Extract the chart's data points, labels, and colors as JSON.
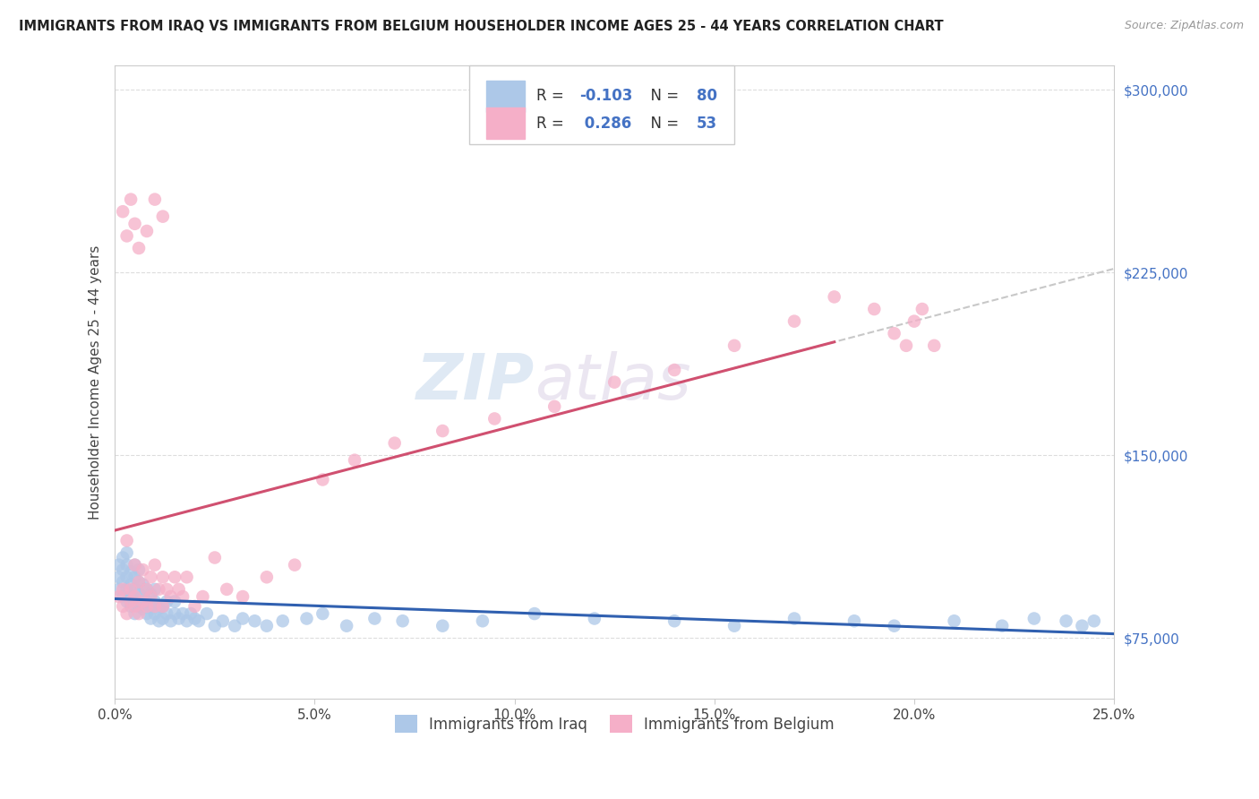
{
  "title": "IMMIGRANTS FROM IRAQ VS IMMIGRANTS FROM BELGIUM HOUSEHOLDER INCOME AGES 25 - 44 YEARS CORRELATION CHART",
  "source": "Source: ZipAtlas.com",
  "ylabel": "Householder Income Ages 25 - 44 years",
  "xmin": 0.0,
  "xmax": 0.25,
  "ymin": 50000,
  "ymax": 310000,
  "yticks": [
    75000,
    150000,
    225000,
    300000
  ],
  "ytick_labels": [
    "$75,000",
    "$150,000",
    "$225,000",
    "$300,000"
  ],
  "xtick_vals": [
    0.0,
    0.05,
    0.1,
    0.15,
    0.2,
    0.25
  ],
  "xtick_labels": [
    "0.0%",
    "5.0%",
    "10.0%",
    "15.0%",
    "20.0%",
    "25.0%"
  ],
  "legend_iraq_r": "-0.103",
  "legend_iraq_n": "80",
  "legend_belgium_r": "0.286",
  "legend_belgium_n": "53",
  "iraq_color": "#adc8e8",
  "belgium_color": "#f5afc8",
  "iraq_line_color": "#3060b0",
  "belgium_line_color": "#d05070",
  "dashed_line_color": "#c8c8c8",
  "watermark_zip": "ZIP",
  "watermark_atlas": "atlas",
  "iraq_x": [
    0.001,
    0.001,
    0.001,
    0.002,
    0.002,
    0.002,
    0.002,
    0.003,
    0.003,
    0.003,
    0.003,
    0.003,
    0.004,
    0.004,
    0.004,
    0.004,
    0.005,
    0.005,
    0.005,
    0.005,
    0.005,
    0.006,
    0.006,
    0.006,
    0.006,
    0.007,
    0.007,
    0.007,
    0.008,
    0.008,
    0.008,
    0.009,
    0.009,
    0.009,
    0.01,
    0.01,
    0.01,
    0.011,
    0.011,
    0.012,
    0.012,
    0.013,
    0.013,
    0.014,
    0.015,
    0.015,
    0.016,
    0.017,
    0.018,
    0.019,
    0.02,
    0.021,
    0.023,
    0.025,
    0.027,
    0.03,
    0.032,
    0.035,
    0.038,
    0.042,
    0.048,
    0.052,
    0.058,
    0.065,
    0.072,
    0.082,
    0.092,
    0.105,
    0.12,
    0.14,
    0.155,
    0.17,
    0.185,
    0.195,
    0.21,
    0.222,
    0.23,
    0.238,
    0.242,
    0.245
  ],
  "iraq_y": [
    95000,
    100000,
    105000,
    92000,
    98000,
    103000,
    108000,
    90000,
    95000,
    100000,
    105000,
    110000,
    88000,
    92000,
    97000,
    102000,
    85000,
    90000,
    95000,
    100000,
    105000,
    88000,
    93000,
    98000,
    103000,
    87000,
    92000,
    97000,
    85000,
    90000,
    95000,
    83000,
    88000,
    93000,
    85000,
    90000,
    95000,
    82000,
    87000,
    83000,
    88000,
    85000,
    90000,
    82000,
    85000,
    90000,
    83000,
    85000,
    82000,
    85000,
    83000,
    82000,
    85000,
    80000,
    82000,
    80000,
    83000,
    82000,
    80000,
    82000,
    83000,
    85000,
    80000,
    83000,
    82000,
    80000,
    82000,
    85000,
    83000,
    82000,
    80000,
    83000,
    82000,
    80000,
    82000,
    80000,
    83000,
    82000,
    80000,
    82000
  ],
  "belgium_x": [
    0.001,
    0.002,
    0.002,
    0.003,
    0.003,
    0.004,
    0.004,
    0.005,
    0.005,
    0.005,
    0.006,
    0.006,
    0.007,
    0.007,
    0.008,
    0.008,
    0.009,
    0.009,
    0.01,
    0.01,
    0.011,
    0.012,
    0.012,
    0.013,
    0.014,
    0.015,
    0.016,
    0.017,
    0.018,
    0.02,
    0.022,
    0.025,
    0.028,
    0.032,
    0.038,
    0.045,
    0.052,
    0.06,
    0.07,
    0.082,
    0.095,
    0.11,
    0.125,
    0.14,
    0.155,
    0.17,
    0.18,
    0.19,
    0.195,
    0.198,
    0.2,
    0.202,
    0.205
  ],
  "belgium_y": [
    92000,
    88000,
    95000,
    85000,
    115000,
    90000,
    95000,
    105000,
    88000,
    92000,
    98000,
    85000,
    103000,
    90000,
    95000,
    88000,
    100000,
    92000,
    105000,
    88000,
    95000,
    100000,
    88000,
    95000,
    92000,
    100000,
    95000,
    92000,
    100000,
    88000,
    92000,
    108000,
    95000,
    92000,
    100000,
    105000,
    140000,
    148000,
    155000,
    160000,
    165000,
    170000,
    180000,
    185000,
    195000,
    205000,
    215000,
    210000,
    200000,
    195000,
    205000,
    210000,
    195000
  ],
  "belgium_outliers_x": [
    0.002,
    0.003,
    0.004,
    0.005,
    0.006,
    0.008,
    0.01,
    0.012
  ],
  "belgium_outliers_y": [
    250000,
    240000,
    255000,
    245000,
    235000,
    242000,
    255000,
    248000
  ]
}
